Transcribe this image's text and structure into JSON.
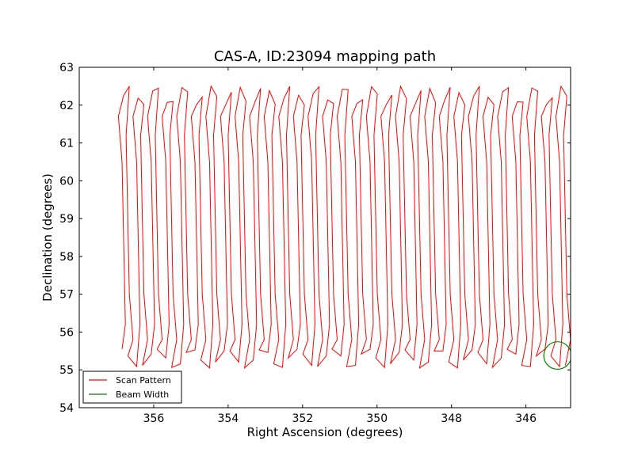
{
  "chart_data": {
    "type": "line",
    "title": "CAS-A, ID:23094 mapping path",
    "xlabel": "Right Ascension (degrees)",
    "ylabel": "Declination (degrees)",
    "xlim": [
      358.0,
      344.8
    ],
    "ylim": [
      54,
      63
    ],
    "x_ticks": [
      356,
      354,
      352,
      350,
      348,
      346
    ],
    "x_tick_labels": [
      "356",
      "354",
      "352",
      "350",
      "348",
      "346"
    ],
    "y_ticks": [
      54,
      55,
      56,
      57,
      58,
      59,
      60,
      61,
      62,
      63
    ],
    "y_tick_labels": [
      "54",
      "55",
      "56",
      "57",
      "58",
      "59",
      "60",
      "61",
      "62",
      "63"
    ],
    "grid": false,
    "legend_position": "lower-left",
    "legend": [
      "Scan Pattern",
      "Beam Width"
    ],
    "series": [
      {
        "name": "Scan Pattern",
        "color": "#ff0000",
        "kind": "raster scan (vertical zigzag legs)",
        "scan_ra_start": 356.85,
        "scan_ra_end": 344.9,
        "scan_leg_count": 62,
        "dec_min": 54.95,
        "dec_max": 62.6
      },
      {
        "name": "Beam Width",
        "color": "#008000",
        "kind": "circle",
        "center_ra": 345.15,
        "center_dec": 55.38,
        "radius_deg": 0.37
      }
    ]
  }
}
